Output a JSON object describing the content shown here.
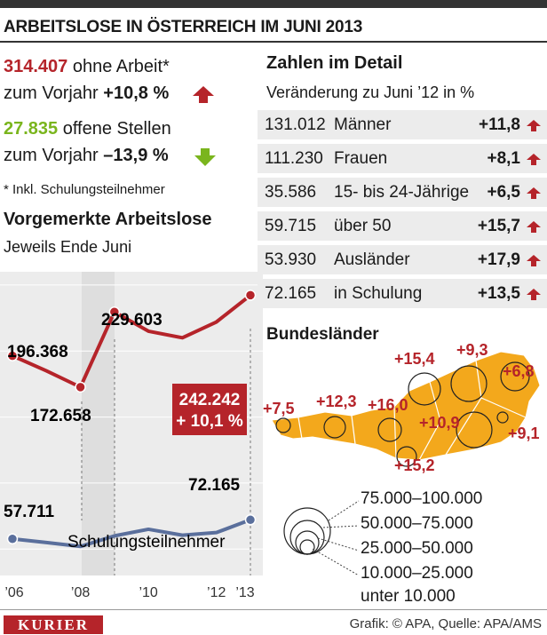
{
  "header": {
    "title": "ARBEITSLOSE IN ÖSTERREICH IM JUNI 2013"
  },
  "summary": {
    "unemployed_value": "314.407",
    "unemployed_label": "ohne Arbeit*",
    "unemployed_change_prefix": "zum Vorjahr",
    "unemployed_change": "+10,8 %",
    "jobs_value": "27.835",
    "jobs_label": "offene Stellen",
    "jobs_change_prefix": "zum Vorjahr",
    "jobs_change": "–13,9 %",
    "footnote": "* Inkl. Schulungsteilnehmer"
  },
  "details": {
    "title": "Zahlen im Detail",
    "subtitle": "Veränderung zu Juni ’12 in %",
    "rows": [
      {
        "value": "131.012",
        "label": "Männer",
        "change": "+11,8"
      },
      {
        "value": "111.230",
        "label": "Frauen",
        "change": "+8,1"
      },
      {
        "value": "35.586",
        "label": "15- bis 24-Jährige",
        "change": "+6,5"
      },
      {
        "value": "59.715",
        "label": "über 50",
        "change": "+15,7"
      },
      {
        "value": "53.930",
        "label": "Ausländer",
        "change": "+17,9"
      },
      {
        "value": "72.165",
        "label": "in Schulung",
        "change": "+13,5"
      }
    ]
  },
  "map": {
    "title": "Bundesländer",
    "labels": [
      "+7,5",
      "+12,3",
      "+16,0",
      "+15,4",
      "+9,3",
      "+6,8",
      "+10,9",
      "+9,1",
      "+15,2"
    ],
    "legend": [
      "75.000–100.000",
      "50.000–75.000",
      "25.000–50.000",
      "10.000–25.000",
      "unter 10.000"
    ]
  },
  "chart_data": {
    "type": "line",
    "title": "Vorgemerkte Arbeitslose",
    "subtitle": "Jeweils Ende Juni",
    "x": [
      2006,
      2007,
      2008,
      2009,
      2010,
      2011,
      2012,
      2013
    ],
    "tick_labels": [
      "’06",
      "’08",
      "’10",
      "’12",
      "’13"
    ],
    "series": [
      {
        "name": "",
        "color": "#b5242a",
        "values": [
          196368,
          185000,
          172658,
          229603,
          215000,
          210000,
          222000,
          242242
        ]
      },
      {
        "name": "Schulungsteilnehmer",
        "color": "#5a6f9c",
        "values": [
          57711,
          55000,
          52000,
          60000,
          65000,
          60500,
          62500,
          72165
        ]
      }
    ],
    "annotations": {
      "v2006": "196.368",
      "v2008": "172.658",
      "v2009": "229.603",
      "v2013": "242.242",
      "v2013_change": "+ 10,1 %",
      "s2006": "57.711",
      "s2013": "72.165"
    },
    "ylim": [
      30000,
      260000
    ],
    "grid": true,
    "colors": {
      "accent_red": "#b5242a",
      "accent_green": "#7ab51d",
      "map_fill": "#f3a81c",
      "panel_bg": "#ececec"
    }
  },
  "footer": {
    "brand": "KURIER",
    "credit": "Grafik: © APA, Quelle: APA/AMS"
  }
}
